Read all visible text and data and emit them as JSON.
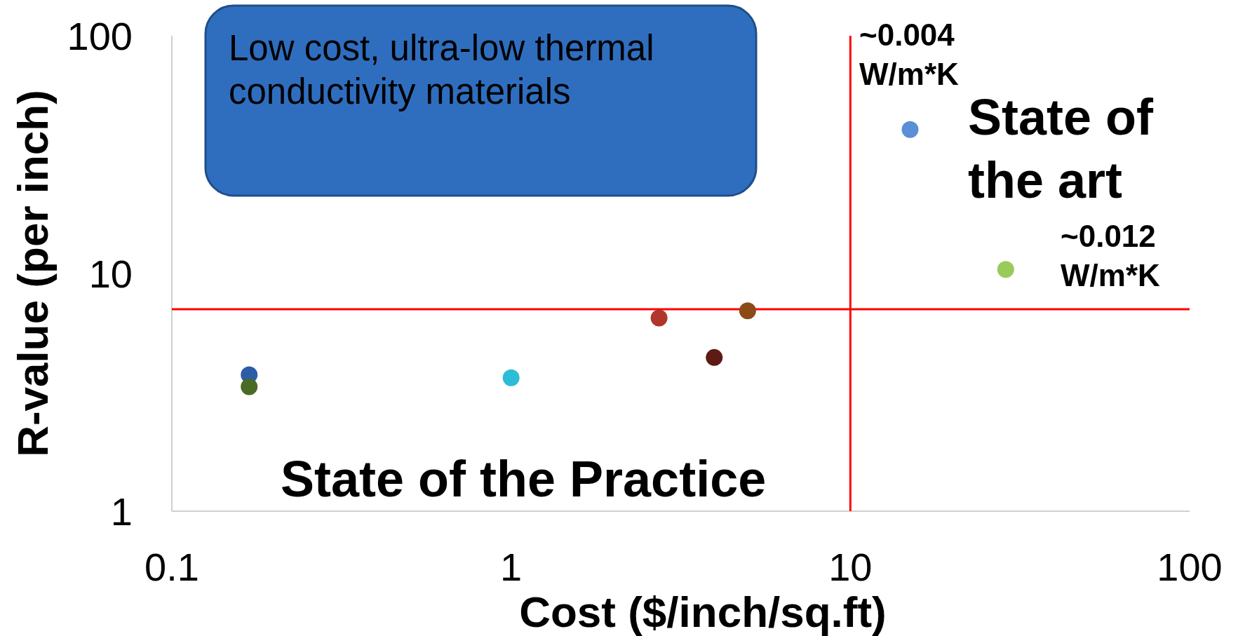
{
  "chart_data": {
    "type": "scatter",
    "xlabel": "Cost ($/inch/sq.ft)",
    "ylabel": "R-value (per inch)",
    "log": "xy",
    "xlim": [
      0.1,
      100
    ],
    "xticks": [
      0.1,
      1,
      10,
      100
    ],
    "ylim": [
      1,
      100
    ],
    "yticks": [
      1,
      10,
      100
    ],
    "grid": false,
    "marker": "circle",
    "series": [
      {
        "x": [
          0.169,
          0.169,
          1.0,
          2.73,
          3.97,
          4.98,
          15.0,
          28.7
        ],
        "values": [
          3.75,
          3.34,
          3.64,
          6.5,
          4.43,
          6.96,
          40.3,
          10.4
        ],
        "colors": [
          "#2a5ca8",
          "#4a6b25",
          "#2bbcd8",
          "#b0352a",
          "#5e1a14",
          "#8b4a16",
          "#5b8fd6",
          "#9acb5a"
        ]
      }
    ],
    "ref_lines": [
      {
        "axis": "x",
        "value": 10,
        "color": "#ff0000"
      },
      {
        "axis": "y",
        "value": 7.07,
        "color": "#ff0000"
      }
    ],
    "annotations": [
      "Low cost, ultra-low thermal conductivity materials",
      "~0.004 W/m*K",
      "State of the art",
      "~0.012 W/m*K",
      "State of the Practice"
    ]
  }
}
